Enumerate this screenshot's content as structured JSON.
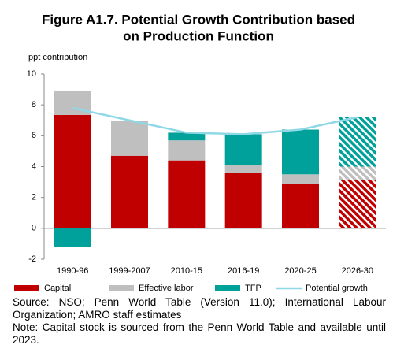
{
  "chart_data": {
    "type": "stacked_bar_line",
    "title": [
      "Figure A1.7. Potential Growth Contribution based",
      "on Production Function"
    ],
    "ylabel": "ppt contribution",
    "categories": [
      "1990-96",
      "1999-2007",
      "2010-15",
      "2016-19",
      "2020-25",
      "2026-30"
    ],
    "hatched": [
      false,
      false,
      false,
      false,
      false,
      true
    ],
    "series": [
      {
        "name": "Capital",
        "color": "#c00000",
        "values": [
          7.35,
          4.7,
          4.4,
          3.6,
          2.9,
          3.15
        ]
      },
      {
        "name": "Effective labor",
        "color": "#bfbfbf",
        "values": [
          1.58,
          2.24,
          1.3,
          0.5,
          0.6,
          0.85
        ]
      },
      {
        "name": "TFP",
        "color": "#00a19a",
        "values": [
          -1.2,
          0,
          0.5,
          2.0,
          2.9,
          3.2
        ]
      },
      {
        "name": "Potential growth",
        "color": "#8fd8e6",
        "type": "line",
        "values": [
          7.8,
          7.0,
          6.2,
          6.1,
          6.4,
          7.2
        ]
      }
    ],
    "ylim": [
      -2,
      10
    ],
    "yticks": [
      -2,
      0,
      2,
      4,
      6,
      8,
      10
    ],
    "source": [
      "Source: NSO; Penn World Table (Version 11.0); International Labour Organization; AMRO staff estimates",
      "Note: Capital stock is sourced from the Penn World Table and available until 2023."
    ]
  }
}
